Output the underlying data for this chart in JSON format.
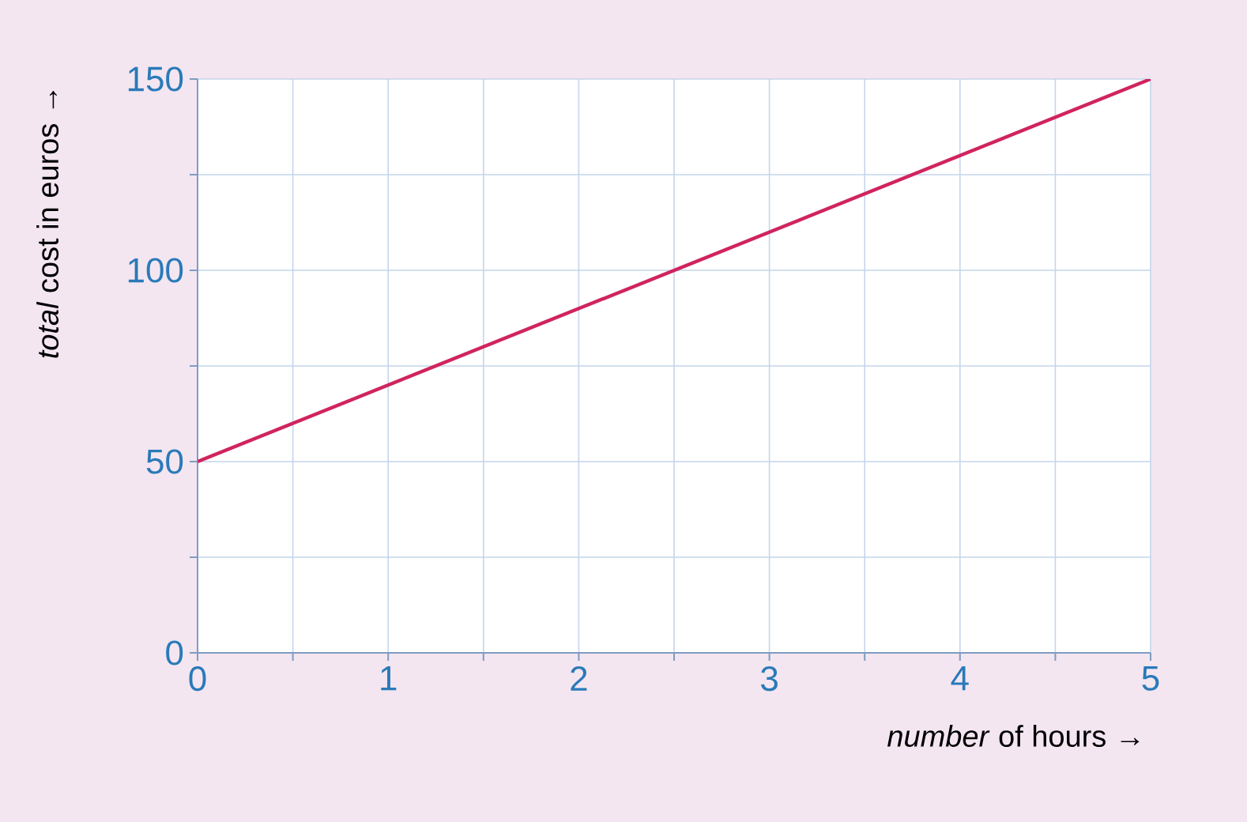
{
  "chart_data": {
    "type": "line",
    "xlabel": "*number* of hours →",
    "ylabel": "*total* cost in euros →",
    "x": [
      0,
      5
    ],
    "series": [
      {
        "color": "#d0245e",
        "values": [
          50,
          150
        ]
      }
    ],
    "xlim": [
      0,
      5
    ],
    "ylim": [
      0,
      150
    ],
    "xticks": [
      0,
      {
        "value": 0.5,
        "label": null
      },
      1,
      {
        "value": 1.5,
        "label": null
      },
      2,
      {
        "value": 2.5,
        "label": null
      },
      3,
      {
        "value": 3.5,
        "label": null
      },
      4,
      {
        "value": 4.5,
        "label": null
      },
      5
    ],
    "yticks": [
      0,
      {
        "value": 25,
        "label": null
      },
      50,
      {
        "value": 75,
        "label": null
      },
      100,
      {
        "value": 125,
        "label": null
      },
      150
    ],
    "grid": true
  }
}
